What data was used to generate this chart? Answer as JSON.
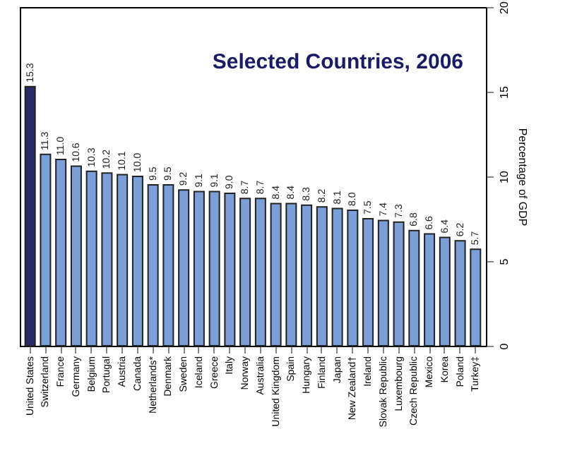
{
  "chart_data": {
    "type": "bar",
    "title": "Selected Countries, 2006",
    "ylabel": "Percentage of GDP",
    "categories": [
      "United States",
      "Switzerland",
      "France",
      "Germany",
      "Belgium",
      "Portugal",
      "Austria",
      "Canada",
      "Netherlands*",
      "Denmark",
      "Sweden",
      "Iceland",
      "Greece",
      "Italy",
      "Norway",
      "Australia",
      "United Kingdom",
      "Spain",
      "Hungary",
      "Finland",
      "Japan",
      "New Zealand†",
      "Ireland",
      "Slovak Republic",
      "Luxembourg",
      "Czech Republic",
      "Mexico",
      "Korea",
      "Poland",
      "Turkey‡"
    ],
    "values": [
      15.3,
      11.3,
      11.0,
      10.6,
      10.3,
      10.2,
      10.1,
      10.0,
      9.5,
      9.5,
      9.2,
      9.1,
      9.1,
      9.0,
      8.7,
      8.7,
      8.4,
      8.4,
      8.3,
      8.2,
      8.1,
      8.0,
      7.5,
      7.4,
      7.3,
      6.8,
      6.6,
      6.4,
      6.2,
      5.7
    ],
    "colors": [
      "#2b2a6b",
      "#7b9fd6",
      "#7b9fd6",
      "#7b9fd6",
      "#7b9fd6",
      "#7b9fd6",
      "#7b9fd6",
      "#7b9fd6",
      "#7b9fd6",
      "#7b9fd6",
      "#7b9fd6",
      "#7b9fd6",
      "#7b9fd6",
      "#7b9fd6",
      "#7b9fd6",
      "#7b9fd6",
      "#7b9fd6",
      "#7b9fd6",
      "#7b9fd6",
      "#7b9fd6",
      "#7b9fd6",
      "#7b9fd6",
      "#7b9fd6",
      "#7b9fd6",
      "#7b9fd6",
      "#7b9fd6",
      "#7b9fd6",
      "#7b9fd6",
      "#7b9fd6",
      "#7b9fd6"
    ],
    "value_labels": [
      "15.3",
      "11.3",
      "11.0",
      "10.6",
      "10.3",
      "10.2",
      "10.1",
      "10.0",
      "9.5",
      "9.5",
      "9.2",
      "9.1",
      "9.1",
      "9.0",
      "8.7",
      "8.7",
      "8.4",
      "8.4",
      "8.3",
      "8.2",
      "8.1",
      "8.0",
      "7.5",
      "7.4",
      "7.3",
      "6.8",
      "6.6",
      "6.4",
      "6.2",
      "5.7"
    ],
    "ylim": [
      0,
      20
    ],
    "yticks": [
      0,
      5,
      10,
      15,
      20
    ],
    "grid": false
  }
}
